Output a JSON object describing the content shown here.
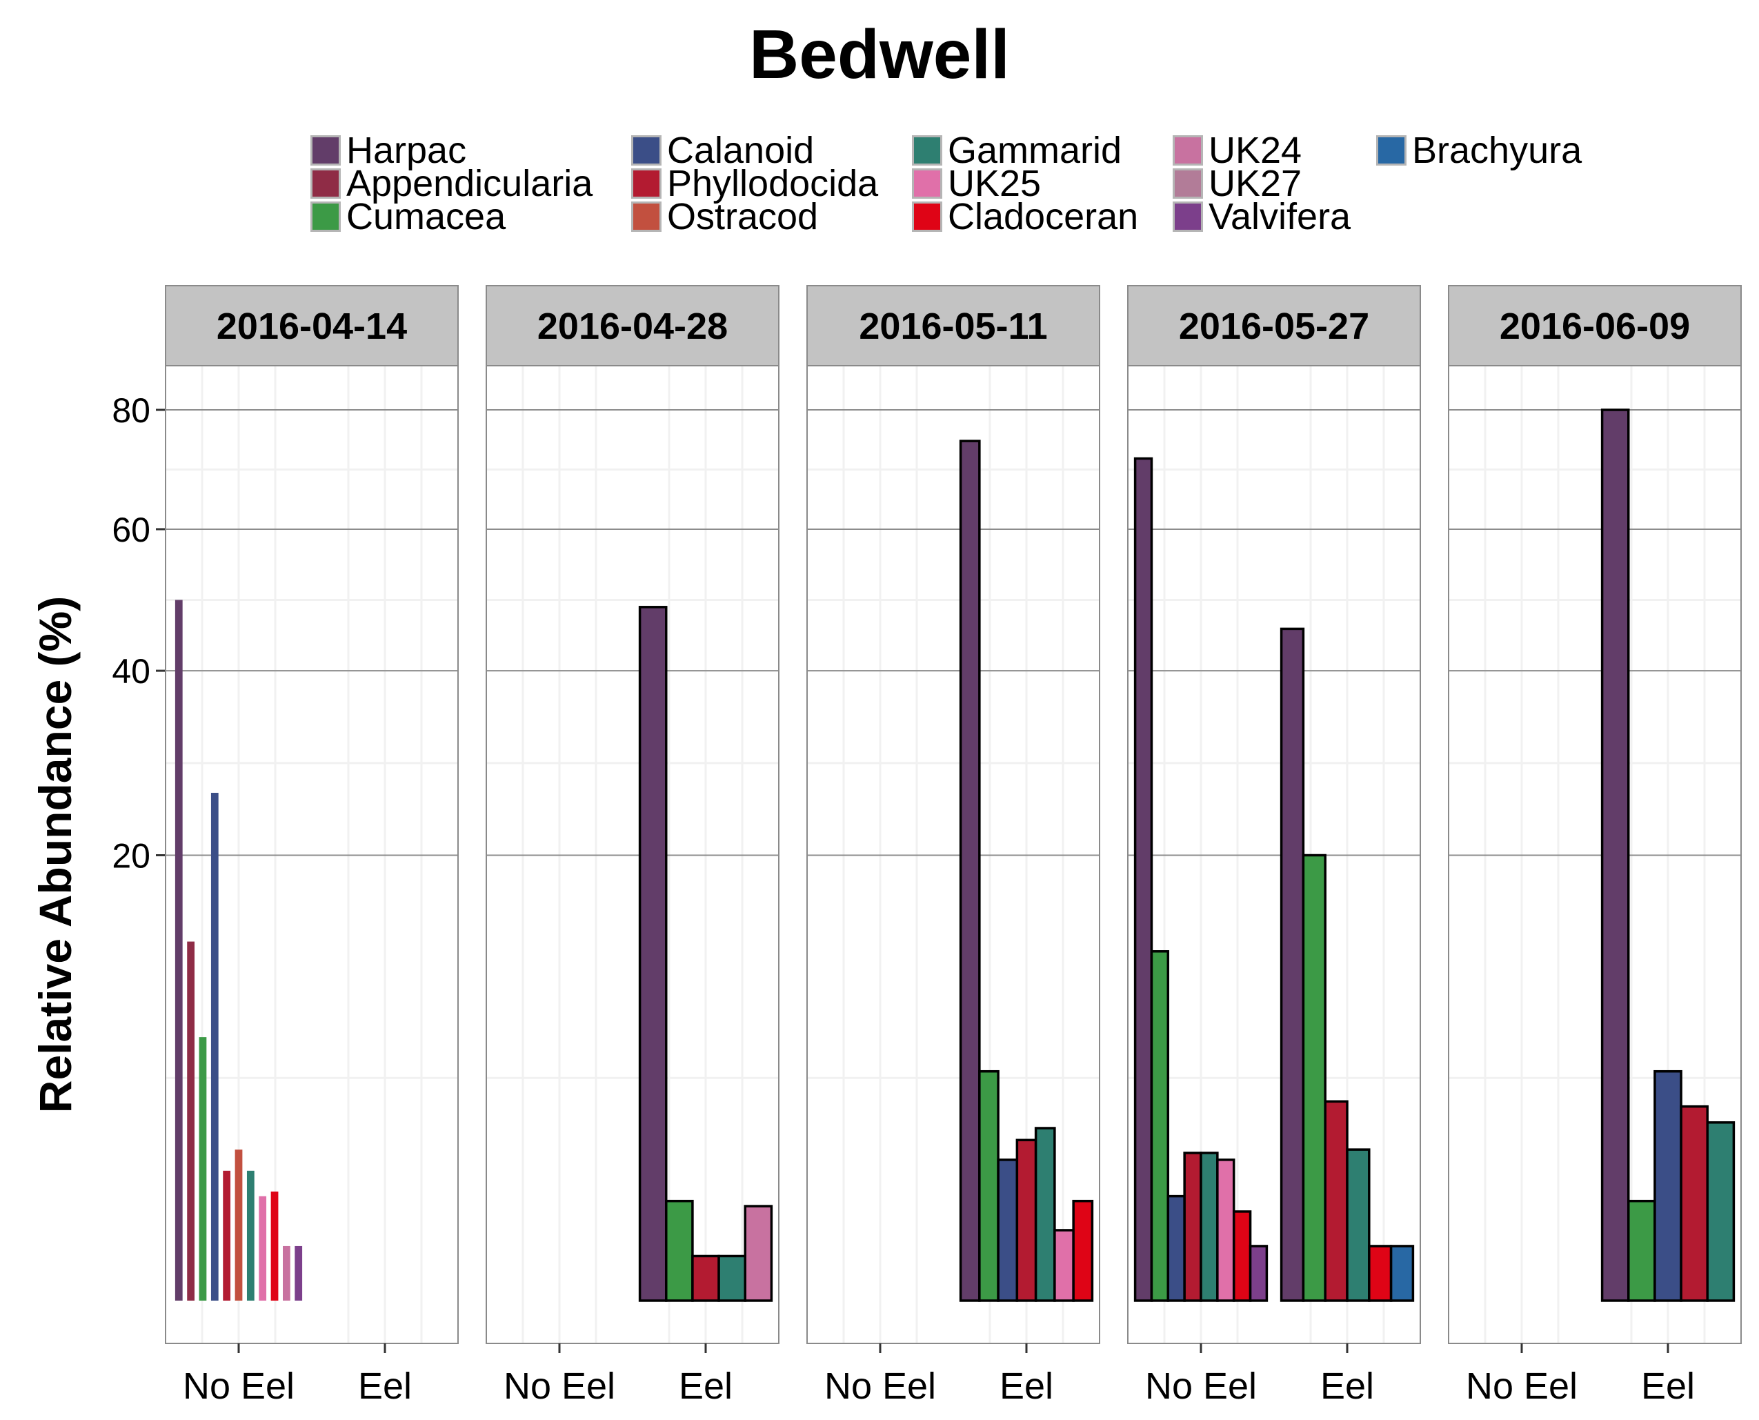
{
  "chart_data": {
    "type": "bar",
    "title": "Bedwell",
    "xlabel": "",
    "ylabel": "Relative Abundance (%)",
    "y_scale": "sqrt",
    "ylim": [
      0,
      80
    ],
    "yticks": [
      "20",
      "40",
      "60",
      "80"
    ],
    "categories": [
      "No Eel",
      "Eel"
    ],
    "legend_position": "top",
    "grid": true,
    "legend": [
      {
        "name": "Harpac",
        "color": "#623D69"
      },
      {
        "name": "Appendicularia",
        "color": "#8F2C46"
      },
      {
        "name": "Cumacea",
        "color": "#3C9A46"
      },
      {
        "name": "Calanoid",
        "color": "#3B4E87"
      },
      {
        "name": "Phyllodocida",
        "color": "#B31B31"
      },
      {
        "name": "Ostracod",
        "color": "#C2503F"
      },
      {
        "name": "Gammarid",
        "color": "#2E7F71"
      },
      {
        "name": "UK25",
        "color": "#E070A9"
      },
      {
        "name": "Cladoceran",
        "color": "#DF0416"
      },
      {
        "name": "UK24",
        "color": "#C872A0"
      },
      {
        "name": "UK27",
        "color": "#B27C98"
      },
      {
        "name": "Valvifera",
        "color": "#7C3F8B"
      },
      {
        "name": "Brachyura",
        "color": "#2868A4"
      }
    ],
    "panels": [
      {
        "label": "2016-04-14",
        "groups": [
          {
            "category": "No Eel",
            "bars": [
              {
                "series": "Harpac",
                "value": 49.5
              },
              {
                "series": "Appendicularia",
                "value": 13
              },
              {
                "series": "Cumacea",
                "value": 7
              },
              {
                "series": "Calanoid",
                "value": 26
              },
              {
                "series": "Phyllodocida",
                "value": 1.7
              },
              {
                "series": "Ostracod",
                "value": 2.3
              },
              {
                "series": "Gammarid",
                "value": 1.7
              },
              {
                "series": "UK25",
                "value": 1.1
              },
              {
                "series": "Cladoceran",
                "value": 1.2
              },
              {
                "series": "UK24",
                "value": 0.3
              },
              {
                "series": "Valvifera",
                "value": 0.3
              }
            ]
          },
          {
            "category": "Eel",
            "bars": []
          }
        ]
      },
      {
        "label": "2016-04-28",
        "groups": [
          {
            "category": "No Eel",
            "bars": []
          },
          {
            "category": "Eel",
            "bars": [
              {
                "series": "Harpac",
                "value": 48.5
              },
              {
                "series": "Cumacea",
                "value": 1.0
              },
              {
                "series": "Phyllodocida",
                "value": 0.2
              },
              {
                "series": "Gammarid",
                "value": 0.2
              },
              {
                "series": "UK24",
                "value": 0.9
              }
            ]
          }
        ]
      },
      {
        "label": "2016-05-11",
        "groups": [
          {
            "category": "No Eel",
            "bars": []
          },
          {
            "category": "Eel",
            "bars": [
              {
                "series": "Harpac",
                "value": 74.5
              },
              {
                "series": "Cumacea",
                "value": 5.3
              },
              {
                "series": "Calanoid",
                "value": 2.0
              },
              {
                "series": "Phyllodocida",
                "value": 2.6
              },
              {
                "series": "Gammarid",
                "value": 3.0
              },
              {
                "series": "UK25",
                "value": 0.5
              },
              {
                "series": "Cladoceran",
                "value": 1.0
              }
            ]
          }
        ]
      },
      {
        "label": "2016-05-27",
        "groups": [
          {
            "category": "No Eel",
            "bars": [
              {
                "series": "Harpac",
                "value": 71.5
              },
              {
                "series": "Cumacea",
                "value": 12.3
              },
              {
                "series": "Calanoid",
                "value": 1.1
              },
              {
                "series": "Phyllodocida",
                "value": 2.2
              },
              {
                "series": "Gammarid",
                "value": 2.2
              },
              {
                "series": "UK25",
                "value": 2.0
              },
              {
                "series": "Cladoceran",
                "value": 0.8
              },
              {
                "series": "Valvifera",
                "value": 0.3
              }
            ]
          },
          {
            "category": "Eel",
            "bars": [
              {
                "series": "Harpac",
                "value": 45.5
              },
              {
                "series": "Cumacea",
                "value": 20
              },
              {
                "series": "Phyllodocida",
                "value": 4.0
              },
              {
                "series": "Gammarid",
                "value": 2.3
              },
              {
                "series": "Cladoceran",
                "value": 0.3
              },
              {
                "series": "Brachyura",
                "value": 0.3
              }
            ]
          }
        ]
      },
      {
        "label": "2016-06-09",
        "groups": [
          {
            "category": "No Eel",
            "bars": []
          },
          {
            "category": "Eel",
            "bars": [
              {
                "series": "Harpac",
                "value": 80
              },
              {
                "series": "Cumacea",
                "value": 1.0
              },
              {
                "series": "Calanoid",
                "value": 5.3
              },
              {
                "series": "Phyllodocida",
                "value": 3.8
              },
              {
                "series": "Gammarid",
                "value": 3.2
              }
            ]
          }
        ]
      }
    ]
  }
}
